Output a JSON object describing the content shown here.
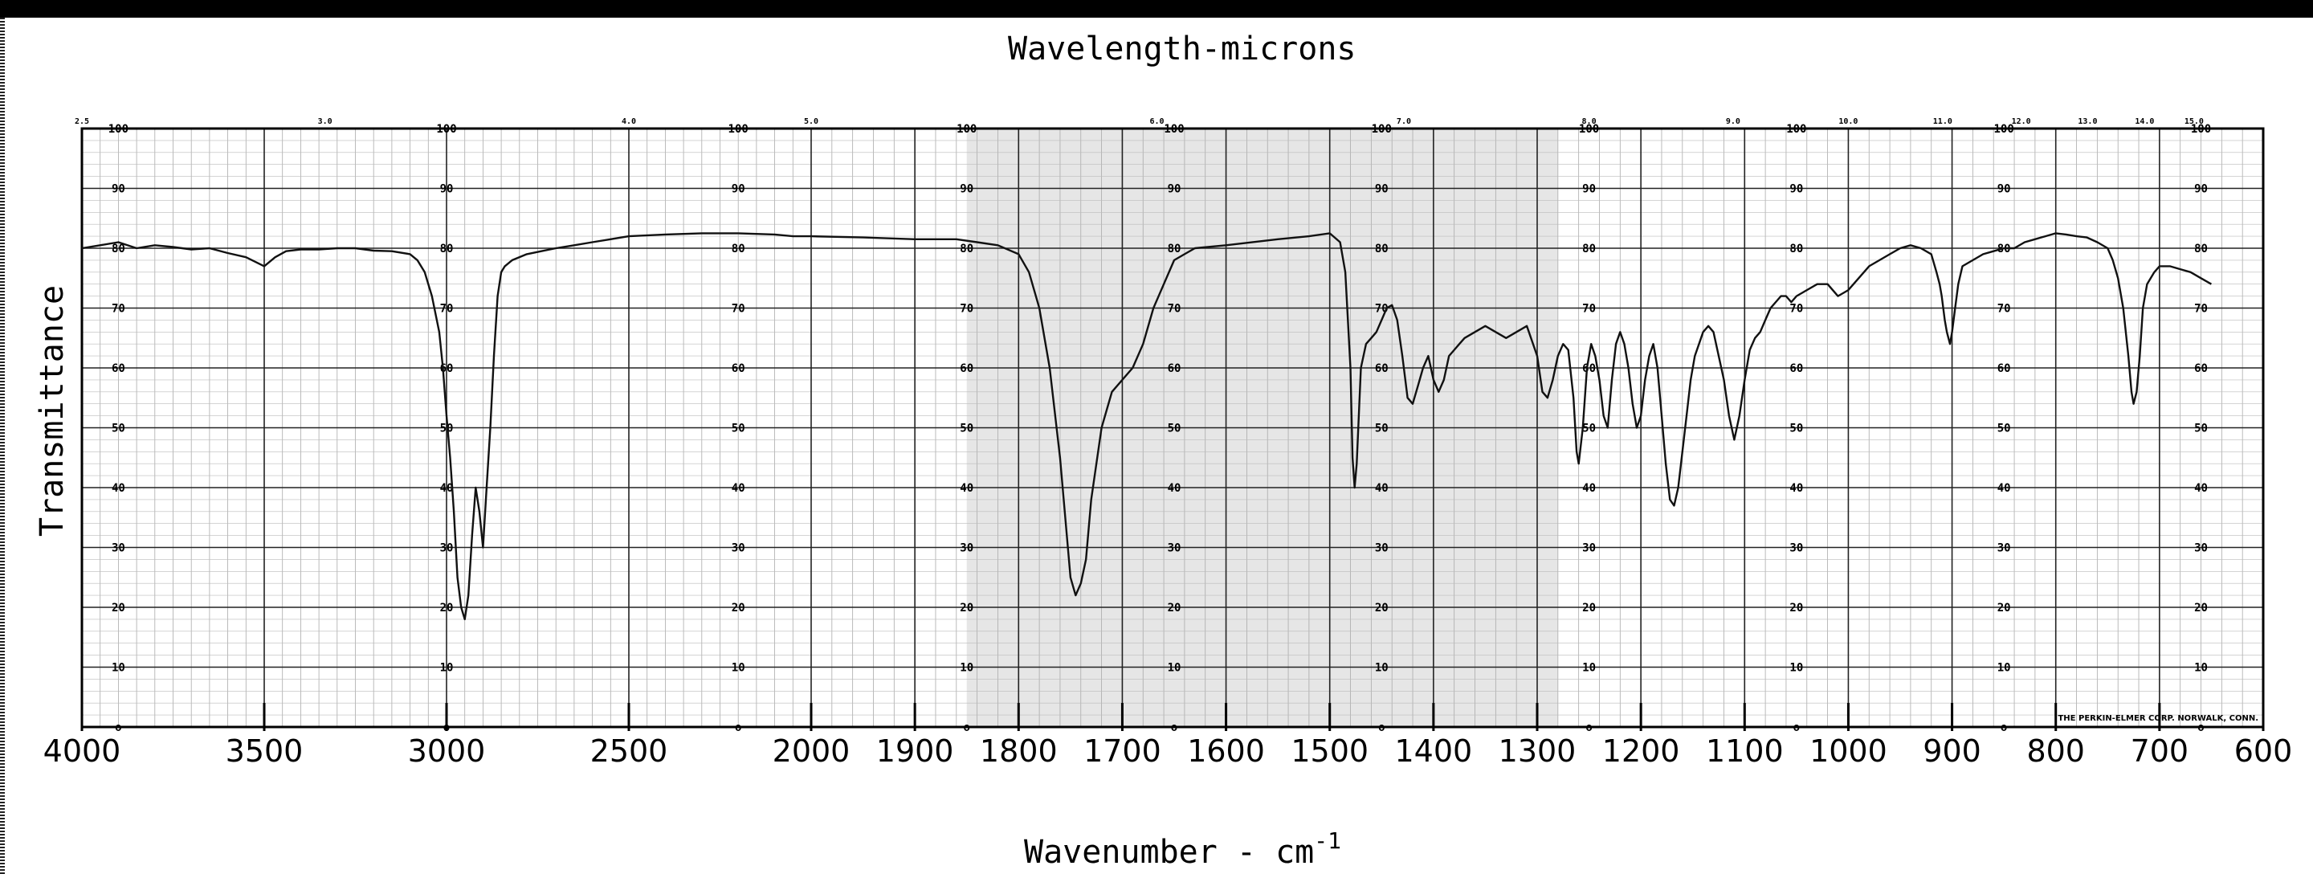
{
  "chart_data": {
    "type": "line",
    "top_axis_label": "Wavelength-microns",
    "xlabel": "Wavenumber - cm",
    "xlabel_superscript": "-1",
    "ylabel": "Transmittance",
    "x_ticks": [
      4000,
      3500,
      3000,
      2500,
      2000,
      1900,
      1800,
      1700,
      1600,
      1500,
      1400,
      1300,
      1200,
      1100,
      1000,
      900,
      800,
      700,
      600
    ],
    "x_tick_text": [
      "4000",
      "3500",
      "3000",
      "2500",
      "2000",
      "1900",
      "1800",
      "1700",
      "1600",
      "1500",
      "1400",
      "1300",
      "1200",
      "1100",
      "1000",
      "900",
      "800",
      "700",
      "600"
    ],
    "wavelength_ticks": [
      "2.5",
      "3.0",
      "4.0",
      "5.0",
      "6.0",
      "7.0",
      "8.0",
      "9.0",
      "10.0",
      "11.0",
      "12.0",
      "13.0",
      "14.0",
      "15.0"
    ],
    "y_ticks": [
      0,
      10,
      20,
      30,
      40,
      50,
      60,
      70,
      80,
      90,
      100
    ],
    "xlim": [
      4000,
      600
    ],
    "ylim": [
      0,
      100
    ],
    "chart_paper_note": "THE PERKIN-ELMER CORP. NORWALK, CONN.",
    "series": [
      {
        "values": [
          [
            4000,
            80
          ],
          [
            3950,
            80.5
          ],
          [
            3900,
            81
          ],
          [
            3850,
            80
          ],
          [
            3800,
            80.5
          ],
          [
            3750,
            80.2
          ],
          [
            3700,
            79.8
          ],
          [
            3650,
            80
          ],
          [
            3600,
            79.2
          ],
          [
            3550,
            78.5
          ],
          [
            3500,
            77
          ],
          [
            3470,
            78.5
          ],
          [
            3440,
            79.5
          ],
          [
            3400,
            79.8
          ],
          [
            3350,
            79.8
          ],
          [
            3300,
            80
          ],
          [
            3250,
            80
          ],
          [
            3200,
            79.6
          ],
          [
            3150,
            79.5
          ],
          [
            3100,
            79
          ],
          [
            3080,
            78
          ],
          [
            3060,
            76
          ],
          [
            3040,
            72
          ],
          [
            3020,
            66
          ],
          [
            3010,
            60
          ],
          [
            3000,
            52
          ],
          [
            2990,
            45
          ],
          [
            2980,
            36
          ],
          [
            2970,
            25
          ],
          [
            2960,
            20
          ],
          [
            2950,
            18
          ],
          [
            2940,
            22
          ],
          [
            2930,
            32
          ],
          [
            2920,
            40
          ],
          [
            2910,
            36
          ],
          [
            2900,
            30
          ],
          [
            2890,
            40
          ],
          [
            2880,
            50
          ],
          [
            2870,
            62
          ],
          [
            2860,
            72
          ],
          [
            2850,
            76
          ],
          [
            2840,
            77
          ],
          [
            2820,
            78
          ],
          [
            2780,
            79
          ],
          [
            2740,
            79.5
          ],
          [
            2700,
            80
          ],
          [
            2650,
            80.5
          ],
          [
            2600,
            81
          ],
          [
            2550,
            81.5
          ],
          [
            2500,
            82
          ],
          [
            2400,
            82.3
          ],
          [
            2300,
            82.5
          ],
          [
            2200,
            82.5
          ],
          [
            2100,
            82.3
          ],
          [
            2050,
            82
          ],
          [
            2000,
            82
          ],
          [
            1950,
            81.8
          ],
          [
            1900,
            81.5
          ],
          [
            1860,
            81.5
          ],
          [
            1840,
            81
          ],
          [
            1820,
            80.5
          ],
          [
            1800,
            79
          ],
          [
            1790,
            76
          ],
          [
            1780,
            70
          ],
          [
            1770,
            60
          ],
          [
            1760,
            45
          ],
          [
            1755,
            35
          ],
          [
            1750,
            25
          ],
          [
            1745,
            22
          ],
          [
            1740,
            24
          ],
          [
            1735,
            28
          ],
          [
            1730,
            38
          ],
          [
            1720,
            50
          ],
          [
            1710,
            56
          ],
          [
            1700,
            58
          ],
          [
            1690,
            60
          ],
          [
            1680,
            64
          ],
          [
            1670,
            70
          ],
          [
            1660,
            74
          ],
          [
            1650,
            78
          ],
          [
            1640,
            79
          ],
          [
            1630,
            80
          ],
          [
            1600,
            80.5
          ],
          [
            1550,
            81.5
          ],
          [
            1520,
            82
          ],
          [
            1500,
            82.5
          ],
          [
            1490,
            81
          ],
          [
            1485,
            76
          ],
          [
            1480,
            60
          ],
          [
            1478,
            45
          ],
          [
            1476,
            40
          ],
          [
            1474,
            44
          ],
          [
            1470,
            60
          ],
          [
            1465,
            64
          ],
          [
            1460,
            65
          ],
          [
            1455,
            66
          ],
          [
            1450,
            68
          ],
          [
            1445,
            70
          ],
          [
            1440,
            70.5
          ],
          [
            1435,
            68
          ],
          [
            1430,
            62
          ],
          [
            1425,
            55
          ],
          [
            1420,
            54
          ],
          [
            1415,
            57
          ],
          [
            1410,
            60
          ],
          [
            1405,
            62
          ],
          [
            1400,
            58
          ],
          [
            1395,
            56
          ],
          [
            1390,
            58
          ],
          [
            1385,
            62
          ],
          [
            1380,
            63
          ],
          [
            1375,
            64
          ],
          [
            1370,
            65
          ],
          [
            1360,
            66
          ],
          [
            1350,
            67
          ],
          [
            1340,
            66
          ],
          [
            1330,
            65
          ],
          [
            1320,
            66
          ],
          [
            1310,
            67
          ],
          [
            1300,
            62
          ],
          [
            1295,
            56
          ],
          [
            1290,
            55
          ],
          [
            1285,
            58
          ],
          [
            1280,
            62
          ],
          [
            1275,
            64
          ],
          [
            1270,
            63
          ],
          [
            1265,
            55
          ],
          [
            1262,
            46
          ],
          [
            1260,
            44
          ],
          [
            1256,
            50
          ],
          [
            1252,
            60
          ],
          [
            1248,
            64
          ],
          [
            1244,
            62
          ],
          [
            1240,
            58
          ],
          [
            1236,
            52
          ],
          [
            1232,
            50
          ],
          [
            1228,
            58
          ],
          [
            1224,
            64
          ],
          [
            1220,
            66
          ],
          [
            1216,
            64
          ],
          [
            1212,
            60
          ],
          [
            1208,
            54
          ],
          [
            1204,
            50
          ],
          [
            1200,
            52
          ],
          [
            1196,
            58
          ],
          [
            1192,
            62
          ],
          [
            1188,
            64
          ],
          [
            1184,
            60
          ],
          [
            1180,
            52
          ],
          [
            1176,
            44
          ],
          [
            1172,
            38
          ],
          [
            1168,
            37
          ],
          [
            1164,
            40
          ],
          [
            1160,
            46
          ],
          [
            1156,
            52
          ],
          [
            1152,
            58
          ],
          [
            1148,
            62
          ],
          [
            1144,
            64
          ],
          [
            1140,
            66
          ],
          [
            1135,
            67
          ],
          [
            1130,
            66
          ],
          [
            1125,
            62
          ],
          [
            1120,
            58
          ],
          [
            1115,
            52
          ],
          [
            1110,
            48
          ],
          [
            1105,
            52
          ],
          [
            1100,
            58
          ],
          [
            1095,
            63
          ],
          [
            1090,
            65
          ],
          [
            1085,
            66
          ],
          [
            1080,
            68
          ],
          [
            1075,
            70
          ],
          [
            1070,
            71
          ],
          [
            1065,
            72
          ],
          [
            1060,
            72
          ],
          [
            1055,
            71
          ],
          [
            1050,
            72
          ],
          [
            1040,
            73
          ],
          [
            1030,
            74
          ],
          [
            1020,
            74
          ],
          [
            1010,
            72
          ],
          [
            1000,
            73
          ],
          [
            990,
            75
          ],
          [
            980,
            77
          ],
          [
            970,
            78
          ],
          [
            960,
            79
          ],
          [
            950,
            80
          ],
          [
            940,
            80.5
          ],
          [
            930,
            80
          ],
          [
            920,
            79
          ],
          [
            915,
            76
          ],
          [
            912,
            74
          ],
          [
            910,
            72
          ],
          [
            907,
            68
          ],
          [
            905,
            66
          ],
          [
            902,
            64
          ],
          [
            900,
            66
          ],
          [
            897,
            70
          ],
          [
            894,
            74
          ],
          [
            890,
            77
          ],
          [
            880,
            78
          ],
          [
            870,
            79
          ],
          [
            860,
            79.5
          ],
          [
            850,
            80
          ],
          [
            840,
            80
          ],
          [
            830,
            81
          ],
          [
            820,
            81.5
          ],
          [
            810,
            82
          ],
          [
            800,
            82.5
          ],
          [
            790,
            82.3
          ],
          [
            780,
            82
          ],
          [
            770,
            81.8
          ],
          [
            760,
            81
          ],
          [
            750,
            80
          ],
          [
            745,
            78
          ],
          [
            740,
            75
          ],
          [
            735,
            70
          ],
          [
            730,
            62
          ],
          [
            727,
            56
          ],
          [
            725,
            54
          ],
          [
            722,
            56
          ],
          [
            719,
            62
          ],
          [
            716,
            70
          ],
          [
            712,
            74
          ],
          [
            705,
            76
          ],
          [
            700,
            77
          ],
          [
            690,
            77
          ],
          [
            680,
            76.5
          ],
          [
            670,
            76
          ],
          [
            660,
            75
          ],
          [
            650,
            74
          ]
        ]
      }
    ]
  }
}
